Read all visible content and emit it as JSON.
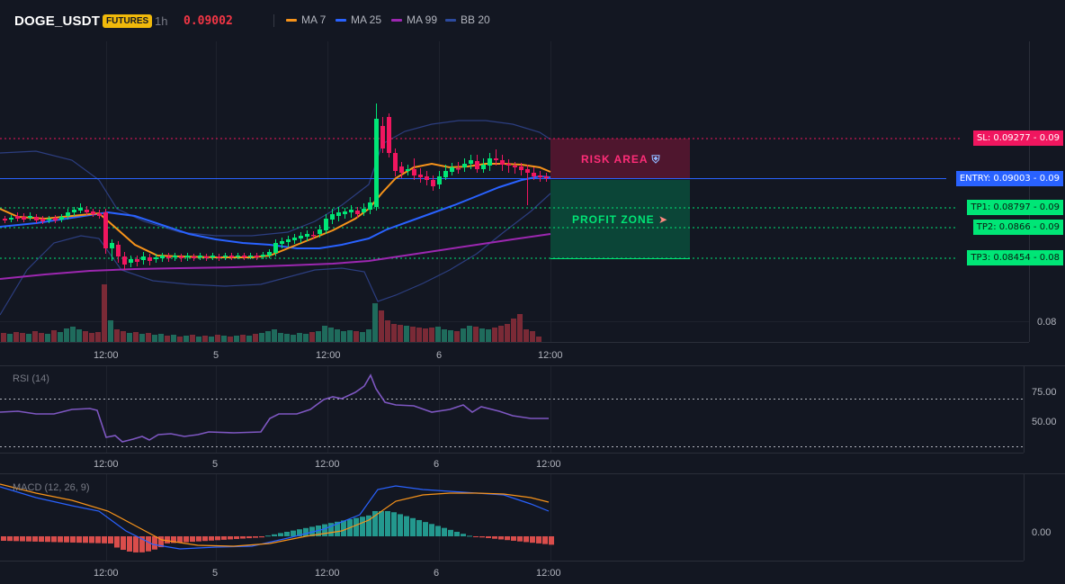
{
  "header": {
    "symbol": "DOGE_USDT",
    "badge": "FUTURES",
    "interval": "1h",
    "price": "0.09002",
    "indicators": [
      {
        "label": "MA 7",
        "color": "#f7931a"
      },
      {
        "label": "MA 25",
        "color": "#2962ff"
      },
      {
        "label": "MA 99",
        "color": "#9c27b0"
      },
      {
        "label": "BB 20",
        "color": "#1e3a8a"
      }
    ]
  },
  "levels": {
    "sl": {
      "label": "SL: 0.09277 - 0.09",
      "color": "#f0165f"
    },
    "entry": {
      "label": "ENTRY: 0.09003 - 0.09",
      "color": "#2962ff"
    },
    "tp1": {
      "label": "TP1: 0.08797 - 0.09",
      "color": "#00e676"
    },
    "tp2": {
      "label": "TP2: 0.0866 - 0.09",
      "color": "#00e676"
    },
    "tp3": {
      "label": "TP3: 0.08454 - 0.08",
      "color": "#00e676"
    }
  },
  "zones": {
    "risk_label": "RISK AREA",
    "profit_label": "PROFIT ZONE"
  },
  "price_axis": {
    "label": "0.08"
  },
  "time_axis": [
    "12:00",
    "5",
    "12:00",
    "6",
    "12:00"
  ],
  "rsi": {
    "title": "RSI (14)",
    "levels": [
      "75.00",
      "50.00"
    ]
  },
  "macd": {
    "title": "MACD (12, 26, 9)",
    "zero_label": "0.00"
  },
  "colors": {
    "up": "#26a69a",
    "down": "#ef5350",
    "bull_candle": "#00e676",
    "bear_candle": "#f0165f",
    "background": "#131722"
  }
}
